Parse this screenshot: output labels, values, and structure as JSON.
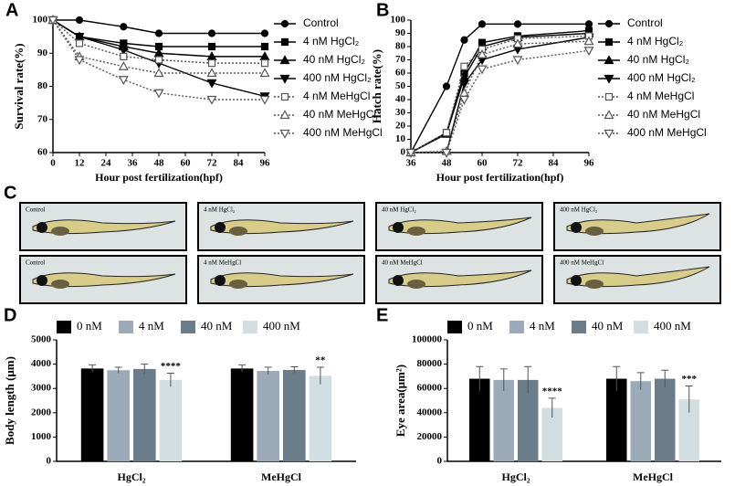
{
  "chart_data": [
    {
      "type": "line",
      "panel": "A",
      "ylabel": "Survival rate(%)",
      "xlabel": "Hour post fertilization(hpf)",
      "x": [
        0,
        12,
        32,
        48,
        72,
        96
      ],
      "xlim": [
        0,
        96
      ],
      "xticks": [
        0,
        12,
        24,
        36,
        48,
        60,
        72,
        84,
        96
      ],
      "ylim": [
        60,
        100
      ],
      "yticks": [
        60,
        70,
        80,
        90,
        100
      ],
      "series": [
        {
          "name": "Control",
          "color": "#000000",
          "marker": "circle",
          "filled": true,
          "dashed": false,
          "values": [
            100,
            100,
            98,
            96,
            96,
            96
          ]
        },
        {
          "name": "4 nM HgCl₂",
          "color": "#000000",
          "marker": "square",
          "filled": true,
          "dashed": false,
          "values": [
            100,
            95,
            93,
            92,
            92,
            92
          ]
        },
        {
          "name": "40 nM HgCl₂",
          "color": "#000000",
          "marker": "triangle-up",
          "filled": true,
          "dashed": false,
          "values": [
            100,
            95,
            92,
            90,
            89,
            89
          ]
        },
        {
          "name": "400 nM HgCl₂",
          "color": "#000000",
          "marker": "triangle-down",
          "filled": true,
          "dashed": false,
          "values": [
            100,
            95,
            91,
            87,
            81,
            77
          ]
        },
        {
          "name": "4 nM MeHgCl",
          "color": "#555555",
          "marker": "square",
          "filled": false,
          "dashed": true,
          "values": [
            100,
            93,
            89,
            88,
            87,
            87
          ]
        },
        {
          "name": "40 nM MeHgCl",
          "color": "#555555",
          "marker": "triangle-up",
          "filled": false,
          "dashed": true,
          "values": [
            100,
            89,
            86,
            84,
            84,
            84
          ]
        },
        {
          "name": "400 nM MeHgCl",
          "color": "#555555",
          "marker": "triangle-down",
          "filled": false,
          "dashed": true,
          "values": [
            100,
            88,
            82,
            78,
            76,
            76
          ]
        }
      ]
    },
    {
      "type": "line",
      "panel": "B",
      "ylabel": "Hatch rate(%)",
      "xlabel": "Hour post fertilization(hpf)",
      "x": [
        36,
        48,
        54,
        60,
        72,
        96
      ],
      "xlim": [
        36,
        96
      ],
      "xticks": [
        36,
        48,
        60,
        72,
        84,
        96
      ],
      "ylim": [
        0,
        100
      ],
      "yticks": [
        0,
        10,
        20,
        30,
        40,
        50,
        60,
        70,
        80,
        90,
        100
      ],
      "series": [
        {
          "name": "Control",
          "color": "#000000",
          "marker": "circle",
          "filled": true,
          "dashed": false,
          "values": [
            0,
            50,
            85,
            97,
            97,
            97
          ]
        },
        {
          "name": "4 nM HgCl₂",
          "color": "#000000",
          "marker": "square",
          "filled": true,
          "dashed": false,
          "values": [
            0,
            15,
            60,
            83,
            88,
            92
          ]
        },
        {
          "name": "40 nM HgCl₂",
          "color": "#000000",
          "marker": "triangle-up",
          "filled": true,
          "dashed": false,
          "values": [
            0,
            14,
            57,
            80,
            87,
            90
          ]
        },
        {
          "name": "400 nM HgCl₂",
          "color": "#000000",
          "marker": "triangle-down",
          "filled": true,
          "dashed": false,
          "values": [
            0,
            0,
            52,
            70,
            78,
            87
          ]
        },
        {
          "name": "4 nM MeHgCl",
          "color": "#555555",
          "marker": "square",
          "filled": false,
          "dashed": true,
          "values": [
            0,
            15,
            65,
            78,
            86,
            88
          ]
        },
        {
          "name": "40 nM MeHgCl",
          "color": "#555555",
          "marker": "triangle-up",
          "filled": false,
          "dashed": true,
          "values": [
            0,
            1,
            45,
            74,
            82,
            84
          ]
        },
        {
          "name": "400 nM MeHgCl",
          "color": "#555555",
          "marker": "triangle-down",
          "filled": false,
          "dashed": true,
          "values": [
            0,
            0,
            40,
            63,
            70,
            77
          ]
        }
      ]
    },
    {
      "type": "bar",
      "panel": "D",
      "ylabel": "Body length (μm)",
      "categories": [
        "HgCl₂",
        "MeHgCl"
      ],
      "ylim": [
        0,
        5000
      ],
      "yticks": [
        0,
        1000,
        2000,
        3000,
        4000,
        5000
      ],
      "series": [
        {
          "name": "0 nM",
          "color": "#000000",
          "values": [
            3820,
            3820
          ],
          "errors": [
            150,
            150
          ]
        },
        {
          "name": "4 nM",
          "color": "#9aaab8",
          "values": [
            3750,
            3720
          ],
          "errors": [
            120,
            150
          ]
        },
        {
          "name": "40 nM",
          "color": "#6b7d8a",
          "values": [
            3800,
            3760
          ],
          "errors": [
            200,
            130
          ]
        },
        {
          "name": "400 nM",
          "color": "#d3dee2",
          "values": [
            3350,
            3520
          ],
          "errors": [
            280,
            350
          ],
          "significance": [
            "****",
            "**"
          ]
        }
      ]
    },
    {
      "type": "bar",
      "panel": "E",
      "ylabel": "Eye area(μm²)",
      "categories": [
        "HgCl₂",
        "MeHgCl"
      ],
      "ylim": [
        0,
        100000
      ],
      "yticks": [
        0,
        20000,
        40000,
        60000,
        80000,
        100000
      ],
      "series": [
        {
          "name": "0 nM",
          "color": "#000000",
          "values": [
            68000,
            68000
          ],
          "errors": [
            10000,
            10000
          ]
        },
        {
          "name": "4 nM",
          "color": "#9aaab8",
          "values": [
            67000,
            66000
          ],
          "errors": [
            9000,
            7000
          ]
        },
        {
          "name": "40 nM",
          "color": "#6b7d8a",
          "values": [
            67000,
            68000
          ],
          "errors": [
            11000,
            7000
          ]
        },
        {
          "name": "400 nM",
          "color": "#d3dee2",
          "values": [
            44000,
            51000
          ],
          "errors": [
            8000,
            11000
          ],
          "significance": [
            "****",
            "***"
          ]
        }
      ]
    }
  ],
  "panel_c": {
    "label": "C",
    "images": [
      "Control",
      "4 nM HgCl₂",
      "40 nM HgCl₂",
      "400 nM HgCl₂",
      "Control",
      "4 nM MeHgCl",
      "40 nM MeHgCl",
      "400 nM MeHgCl"
    ]
  }
}
